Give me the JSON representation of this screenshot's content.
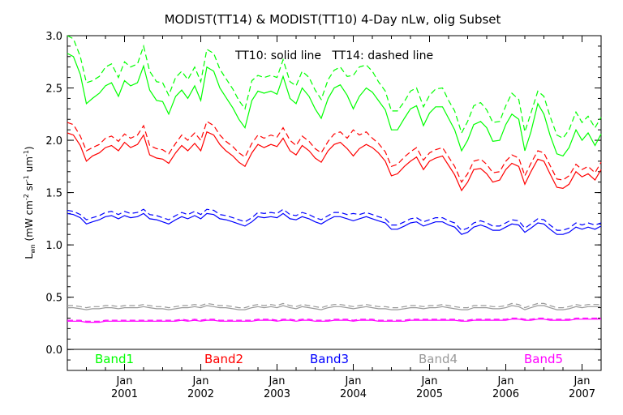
{
  "chart_data": {
    "type": "line",
    "title": "MODIST(TT14) & MODIST(TT10) 4-Day nLw, olig Subset",
    "annotation": "TT10: solid line   TT14: dashed line",
    "ylabel": {
      "main": "L",
      "sub": "wn",
      "units_pre": " (mW cm",
      "sup1": "-2",
      "units_mid": " sr",
      "sup2": "-1",
      "units_mid2": " um",
      "sup3": "-1",
      "units_post": ")"
    },
    "xlim": [
      2000.25,
      2007.25
    ],
    "ylim": [
      -0.2,
      3.0
    ],
    "y_ticks": [
      "0.0",
      "0.5",
      "1.0",
      "1.5",
      "2.0",
      "2.5",
      "3.0"
    ],
    "x_ticks": [
      {
        "jan": "Jan",
        "year": "2001"
      },
      {
        "jan": "Jan",
        "year": "2002"
      },
      {
        "jan": "Jan",
        "year": "2003"
      },
      {
        "jan": "Jan",
        "year": "2004"
      },
      {
        "jan": "Jan",
        "year": "2005"
      },
      {
        "jan": "Jan",
        "year": "2006"
      },
      {
        "jan": "Jan",
        "year": "2007"
      }
    ],
    "x": [
      2000.25,
      2000.33,
      2000.42,
      2000.5,
      2000.58,
      2000.67,
      2000.75,
      2000.83,
      2000.92,
      2001.0,
      2001.08,
      2001.17,
      2001.25,
      2001.33,
      2001.42,
      2001.5,
      2001.58,
      2001.67,
      2001.75,
      2001.83,
      2001.92,
      2002.0,
      2002.08,
      2002.17,
      2002.25,
      2002.33,
      2002.42,
      2002.5,
      2002.58,
      2002.67,
      2002.75,
      2002.83,
      2002.92,
      2003.0,
      2003.08,
      2003.17,
      2003.25,
      2003.33,
      2003.42,
      2003.5,
      2003.58,
      2003.67,
      2003.75,
      2003.83,
      2003.92,
      2004.0,
      2004.08,
      2004.17,
      2004.25,
      2004.33,
      2004.42,
      2004.5,
      2004.58,
      2004.67,
      2004.75,
      2004.83,
      2004.92,
      2005.0,
      2005.08,
      2005.17,
      2005.25,
      2005.33,
      2005.42,
      2005.5,
      2005.58,
      2005.67,
      2005.75,
      2005.83,
      2005.92,
      2006.0,
      2006.08,
      2006.17,
      2006.25,
      2006.33,
      2006.42,
      2006.5,
      2006.58,
      2006.67,
      2006.75,
      2006.83,
      2006.92,
      2007.0,
      2007.08,
      2007.17,
      2007.25
    ],
    "series": [
      {
        "name": "Band1",
        "style": "solid",
        "color": "#00ff00",
        "values": [
          2.83,
          2.8,
          2.63,
          2.35,
          2.4,
          2.45,
          2.52,
          2.55,
          2.42,
          2.57,
          2.52,
          2.55,
          2.71,
          2.48,
          2.38,
          2.37,
          2.25,
          2.42,
          2.48,
          2.4,
          2.52,
          2.38,
          2.7,
          2.66,
          2.5,
          2.41,
          2.31,
          2.2,
          2.12,
          2.38,
          2.47,
          2.45,
          2.47,
          2.44,
          2.61,
          2.4,
          2.35,
          2.5,
          2.42,
          2.3,
          2.21,
          2.4,
          2.5,
          2.53,
          2.43,
          2.3,
          2.42,
          2.5,
          2.46,
          2.38,
          2.29,
          2.1,
          2.1,
          2.21,
          2.3,
          2.33,
          2.14,
          2.26,
          2.32,
          2.32,
          2.21,
          2.1,
          1.9,
          2.0,
          2.15,
          2.18,
          2.12,
          1.99,
          2.0,
          2.15,
          2.25,
          2.2,
          1.9,
          2.08,
          2.35,
          2.25,
          2.05,
          1.87,
          1.85,
          1.93,
          2.1,
          2.0,
          2.07,
          1.95,
          2.06
        ]
      },
      {
        "name": "Band1",
        "style": "dashed",
        "color": "#00ff00",
        "values": [
          3.0,
          2.97,
          2.8,
          2.55,
          2.57,
          2.61,
          2.7,
          2.73,
          2.6,
          2.75,
          2.7,
          2.73,
          2.9,
          2.66,
          2.56,
          2.55,
          2.43,
          2.6,
          2.66,
          2.58,
          2.7,
          2.56,
          2.87,
          2.83,
          2.68,
          2.59,
          2.49,
          2.38,
          2.3,
          2.57,
          2.62,
          2.6,
          2.62,
          2.6,
          2.77,
          2.56,
          2.52,
          2.66,
          2.6,
          2.48,
          2.39,
          2.58,
          2.67,
          2.7,
          2.61,
          2.62,
          2.7,
          2.72,
          2.66,
          2.56,
          2.47,
          2.28,
          2.28,
          2.37,
          2.47,
          2.5,
          2.32,
          2.43,
          2.49,
          2.5,
          2.38,
          2.28,
          2.07,
          2.18,
          2.33,
          2.36,
          2.29,
          2.17,
          2.18,
          2.33,
          2.45,
          2.39,
          2.08,
          2.26,
          2.47,
          2.42,
          2.23,
          2.05,
          2.02,
          2.1,
          2.27,
          2.17,
          2.23,
          2.12,
          2.22
        ]
      },
      {
        "name": "Band2",
        "style": "solid",
        "color": "#ff0000",
        "values": [
          2.07,
          2.05,
          1.95,
          1.8,
          1.85,
          1.88,
          1.93,
          1.95,
          1.9,
          1.98,
          1.93,
          1.96,
          2.05,
          1.86,
          1.83,
          1.82,
          1.78,
          1.88,
          1.95,
          1.9,
          1.97,
          1.9,
          2.08,
          2.05,
          1.96,
          1.9,
          1.85,
          1.79,
          1.75,
          1.88,
          1.96,
          1.93,
          1.96,
          1.94,
          2.02,
          1.9,
          1.86,
          1.95,
          1.9,
          1.83,
          1.79,
          1.9,
          1.96,
          1.98,
          1.92,
          1.85,
          1.92,
          1.96,
          1.93,
          1.88,
          1.8,
          1.66,
          1.68,
          1.75,
          1.8,
          1.84,
          1.72,
          1.8,
          1.83,
          1.85,
          1.76,
          1.67,
          1.52,
          1.6,
          1.72,
          1.73,
          1.68,
          1.6,
          1.62,
          1.72,
          1.78,
          1.75,
          1.58,
          1.7,
          1.82,
          1.8,
          1.68,
          1.55,
          1.54,
          1.58,
          1.7,
          1.65,
          1.68,
          1.62,
          1.72
        ]
      },
      {
        "name": "Band2",
        "style": "dashed",
        "color": "#ff0000",
        "values": [
          2.17,
          2.15,
          2.04,
          1.9,
          1.93,
          1.96,
          2.02,
          2.04,
          1.99,
          2.06,
          2.02,
          2.05,
          2.14,
          1.95,
          1.92,
          1.91,
          1.87,
          1.97,
          2.05,
          2.0,
          2.07,
          2.0,
          2.18,
          2.14,
          2.05,
          1.99,
          1.94,
          1.88,
          1.84,
          1.97,
          2.05,
          2.02,
          2.05,
          2.03,
          2.12,
          2.0,
          1.95,
          2.04,
          1.99,
          1.92,
          1.88,
          1.99,
          2.06,
          2.08,
          2.02,
          2.1,
          2.05,
          2.08,
          2.02,
          1.97,
          1.89,
          1.75,
          1.77,
          1.84,
          1.89,
          1.93,
          1.81,
          1.88,
          1.91,
          1.93,
          1.84,
          1.75,
          1.6,
          1.68,
          1.8,
          1.82,
          1.77,
          1.69,
          1.7,
          1.8,
          1.86,
          1.83,
          1.66,
          1.78,
          1.9,
          1.88,
          1.76,
          1.63,
          1.62,
          1.66,
          1.77,
          1.72,
          1.75,
          1.69,
          1.79
        ]
      },
      {
        "name": "Band3",
        "style": "solid",
        "color": "#0000ff",
        "values": [
          1.3,
          1.29,
          1.26,
          1.2,
          1.22,
          1.24,
          1.27,
          1.28,
          1.25,
          1.28,
          1.26,
          1.27,
          1.3,
          1.25,
          1.24,
          1.22,
          1.2,
          1.24,
          1.27,
          1.25,
          1.28,
          1.25,
          1.3,
          1.29,
          1.25,
          1.24,
          1.22,
          1.2,
          1.18,
          1.22,
          1.27,
          1.26,
          1.27,
          1.26,
          1.3,
          1.25,
          1.24,
          1.27,
          1.25,
          1.22,
          1.2,
          1.24,
          1.27,
          1.27,
          1.25,
          1.23,
          1.25,
          1.27,
          1.25,
          1.23,
          1.21,
          1.15,
          1.15,
          1.18,
          1.21,
          1.22,
          1.18,
          1.2,
          1.22,
          1.22,
          1.19,
          1.17,
          1.1,
          1.12,
          1.17,
          1.19,
          1.17,
          1.14,
          1.14,
          1.17,
          1.2,
          1.19,
          1.12,
          1.16,
          1.21,
          1.2,
          1.15,
          1.1,
          1.1,
          1.12,
          1.17,
          1.15,
          1.17,
          1.15,
          1.18
        ]
      },
      {
        "name": "Band3",
        "style": "dashed",
        "color": "#0000ff",
        "values": [
          1.33,
          1.32,
          1.29,
          1.24,
          1.26,
          1.28,
          1.31,
          1.32,
          1.29,
          1.32,
          1.3,
          1.31,
          1.34,
          1.29,
          1.28,
          1.26,
          1.24,
          1.28,
          1.31,
          1.29,
          1.32,
          1.29,
          1.34,
          1.33,
          1.29,
          1.28,
          1.26,
          1.24,
          1.22,
          1.26,
          1.31,
          1.3,
          1.31,
          1.3,
          1.34,
          1.29,
          1.28,
          1.31,
          1.29,
          1.26,
          1.24,
          1.28,
          1.31,
          1.31,
          1.29,
          1.3,
          1.29,
          1.31,
          1.29,
          1.27,
          1.25,
          1.19,
          1.19,
          1.22,
          1.25,
          1.26,
          1.22,
          1.24,
          1.26,
          1.26,
          1.23,
          1.21,
          1.14,
          1.16,
          1.21,
          1.23,
          1.21,
          1.18,
          1.18,
          1.21,
          1.24,
          1.23,
          1.16,
          1.2,
          1.25,
          1.24,
          1.19,
          1.14,
          1.14,
          1.16,
          1.21,
          1.19,
          1.21,
          1.19,
          1.21
        ]
      },
      {
        "name": "Band4",
        "style": "solid",
        "color": "#999999",
        "values": [
          0.4,
          0.4,
          0.39,
          0.38,
          0.39,
          0.39,
          0.4,
          0.4,
          0.39,
          0.4,
          0.4,
          0.4,
          0.41,
          0.4,
          0.39,
          0.39,
          0.38,
          0.39,
          0.4,
          0.4,
          0.41,
          0.4,
          0.42,
          0.41,
          0.4,
          0.4,
          0.39,
          0.38,
          0.38,
          0.4,
          0.41,
          0.4,
          0.41,
          0.4,
          0.42,
          0.4,
          0.39,
          0.41,
          0.4,
          0.39,
          0.38,
          0.4,
          0.41,
          0.41,
          0.4,
          0.39,
          0.4,
          0.41,
          0.4,
          0.39,
          0.39,
          0.38,
          0.38,
          0.39,
          0.4,
          0.4,
          0.39,
          0.4,
          0.4,
          0.41,
          0.4,
          0.39,
          0.38,
          0.38,
          0.4,
          0.4,
          0.4,
          0.39,
          0.39,
          0.4,
          0.42,
          0.41,
          0.38,
          0.4,
          0.42,
          0.42,
          0.4,
          0.38,
          0.38,
          0.39,
          0.41,
          0.4,
          0.41,
          0.41,
          0.41
        ]
      },
      {
        "name": "Band4",
        "style": "dashed",
        "color": "#999999",
        "values": [
          0.42,
          0.42,
          0.41,
          0.4,
          0.41,
          0.41,
          0.42,
          0.42,
          0.41,
          0.42,
          0.42,
          0.42,
          0.43,
          0.42,
          0.41,
          0.41,
          0.4,
          0.41,
          0.42,
          0.42,
          0.43,
          0.42,
          0.44,
          0.43,
          0.42,
          0.42,
          0.41,
          0.4,
          0.4,
          0.42,
          0.43,
          0.42,
          0.43,
          0.42,
          0.44,
          0.42,
          0.41,
          0.43,
          0.42,
          0.41,
          0.4,
          0.42,
          0.43,
          0.43,
          0.42,
          0.41,
          0.42,
          0.43,
          0.42,
          0.41,
          0.41,
          0.4,
          0.4,
          0.41,
          0.42,
          0.42,
          0.41,
          0.42,
          0.42,
          0.43,
          0.42,
          0.41,
          0.4,
          0.4,
          0.42,
          0.42,
          0.42,
          0.41,
          0.41,
          0.42,
          0.44,
          0.43,
          0.4,
          0.42,
          0.44,
          0.44,
          0.42,
          0.4,
          0.4,
          0.41,
          0.43,
          0.42,
          0.43,
          0.43,
          0.43
        ]
      },
      {
        "name": "Band5",
        "style": "solid",
        "color": "#ff00ff",
        "values": [
          0.27,
          0.27,
          0.27,
          0.26,
          0.26,
          0.26,
          0.27,
          0.27,
          0.27,
          0.27,
          0.27,
          0.27,
          0.27,
          0.27,
          0.27,
          0.27,
          0.27,
          0.27,
          0.28,
          0.27,
          0.28,
          0.27,
          0.28,
          0.28,
          0.27,
          0.27,
          0.27,
          0.27,
          0.27,
          0.27,
          0.28,
          0.28,
          0.28,
          0.27,
          0.28,
          0.28,
          0.27,
          0.28,
          0.28,
          0.27,
          0.27,
          0.27,
          0.28,
          0.28,
          0.28,
          0.27,
          0.28,
          0.28,
          0.28,
          0.27,
          0.27,
          0.27,
          0.27,
          0.27,
          0.28,
          0.28,
          0.28,
          0.28,
          0.28,
          0.28,
          0.28,
          0.28,
          0.27,
          0.27,
          0.28,
          0.28,
          0.28,
          0.28,
          0.28,
          0.28,
          0.29,
          0.29,
          0.28,
          0.28,
          0.29,
          0.29,
          0.28,
          0.28,
          0.28,
          0.28,
          0.29,
          0.29,
          0.29,
          0.29,
          0.29
        ]
      },
      {
        "name": "Band5",
        "style": "dashed",
        "color": "#ff00ff",
        "values": [
          0.28,
          0.28,
          0.28,
          0.27,
          0.27,
          0.27,
          0.28,
          0.28,
          0.28,
          0.28,
          0.28,
          0.28,
          0.28,
          0.28,
          0.28,
          0.28,
          0.28,
          0.28,
          0.29,
          0.28,
          0.29,
          0.28,
          0.29,
          0.29,
          0.28,
          0.28,
          0.28,
          0.28,
          0.28,
          0.28,
          0.29,
          0.29,
          0.29,
          0.28,
          0.29,
          0.29,
          0.28,
          0.29,
          0.29,
          0.28,
          0.28,
          0.28,
          0.29,
          0.29,
          0.29,
          0.28,
          0.29,
          0.29,
          0.29,
          0.28,
          0.28,
          0.28,
          0.28,
          0.28,
          0.29,
          0.29,
          0.29,
          0.29,
          0.29,
          0.29,
          0.29,
          0.29,
          0.28,
          0.28,
          0.29,
          0.29,
          0.29,
          0.29,
          0.29,
          0.29,
          0.3,
          0.3,
          0.29,
          0.29,
          0.3,
          0.3,
          0.29,
          0.29,
          0.29,
          0.29,
          0.3,
          0.3,
          0.3,
          0.3,
          0.3
        ]
      }
    ],
    "band_labels": [
      {
        "text": "Band1",
        "color": "#00ff00"
      },
      {
        "text": "Band2",
        "color": "#ff0000"
      },
      {
        "text": "Band3",
        "color": "#0000ff"
      },
      {
        "text": "Band4",
        "color": "#999999"
      },
      {
        "text": "Band5",
        "color": "#ff00ff"
      }
    ]
  }
}
